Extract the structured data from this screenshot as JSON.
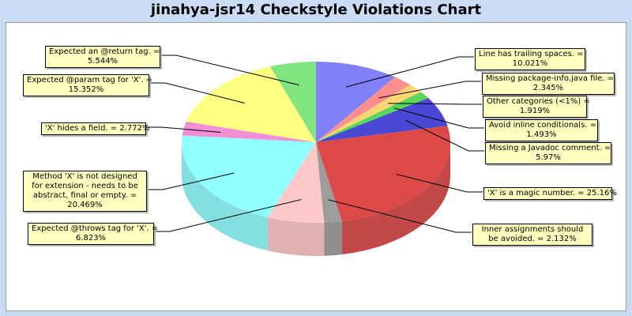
{
  "title": "jinahya-jsr14 Checkstyle Violations Chart",
  "chart_data": {
    "type": "pie",
    "style": "3d",
    "slices": [
      {
        "label": "Line has trailing spaces.",
        "value_text": "10.021%",
        "value": 10.021,
        "color": "#7070f8"
      },
      {
        "label": "Missing package-info.java file.",
        "value_text": "2.345%",
        "value": 2.345,
        "color": "#ff8080"
      },
      {
        "label": "Other categories (<1%)",
        "value_text": "1.919%",
        "value": 1.919,
        "color": "#ffd060"
      },
      {
        "label": "Avoid inline conditionals.",
        "value_text": "1.493%",
        "value": 1.493,
        "color": "#40d040"
      },
      {
        "label": "Missing a Javadoc comment.",
        "value_text": "5.97%",
        "value": 5.97,
        "color": "#3030d0"
      },
      {
        "label": "'X' is a magic number.",
        "value_text": "25.16%",
        "value": 25.16,
        "color": "#d83030"
      },
      {
        "label": "Inner assignments should be avoided.",
        "value_text": "2.132%",
        "value": 2.132,
        "color": "#909090"
      },
      {
        "label": "Expected @throws tag for 'X'.",
        "value_text": "6.823%",
        "value": 6.823,
        "color": "#ffc0c0"
      },
      {
        "label": "Method 'X' is not designed for extension - needs to be abstract, final or empty.",
        "value_text": "20.469%",
        "value": 20.469,
        "color": "#80ffff"
      },
      {
        "label": "'X' hides a field.",
        "value_text": "2.772%",
        "value": 2.772,
        "color": "#f080d0"
      },
      {
        "label": "Expected @param tag for 'X'.",
        "value_text": "15.352%",
        "value": 15.352,
        "color": "#ffff70"
      },
      {
        "label": "Expected an @return tag.",
        "value_text": "5.544%",
        "value": 5.544,
        "color": "#70e070"
      }
    ]
  }
}
